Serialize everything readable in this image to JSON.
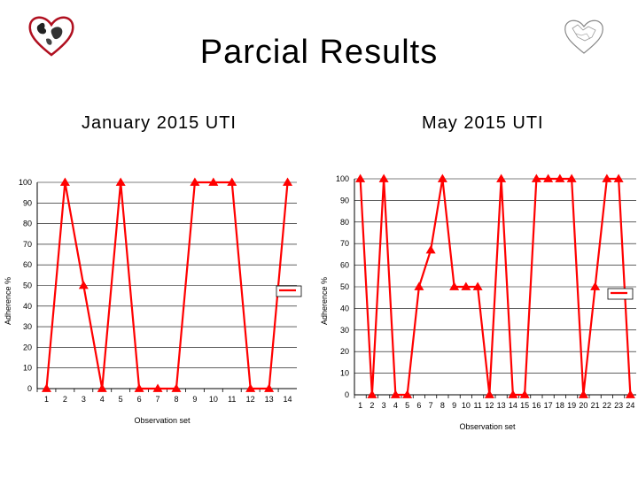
{
  "page": {
    "title": "Parcial Results",
    "icons": {
      "left_logo": "heart-globe-icon",
      "right_logo": "heart-map-icon"
    }
  },
  "colors": {
    "series": "#ff0000",
    "axis": "#000000",
    "gridline": "#000000"
  },
  "chart_data": [
    {
      "type": "line",
      "title": "January 2015 UTI",
      "xlabel": "Observation set",
      "ylabel": "Adherence %",
      "x": [
        1,
        2,
        3,
        4,
        5,
        6,
        7,
        8,
        9,
        10,
        11,
        12,
        13,
        14
      ],
      "series": [
        {
          "values": [
            0,
            100,
            50,
            0,
            100,
            0,
            0,
            0,
            100,
            100,
            100,
            0,
            0,
            100
          ]
        }
      ],
      "ylim": [
        0,
        100
      ],
      "yticks": [
        0,
        10,
        20,
        30,
        40,
        50,
        60,
        70,
        80,
        90,
        100
      ],
      "grid": true,
      "legend": "right",
      "marker": "triangle"
    },
    {
      "type": "line",
      "title": "May 2015 UTI",
      "xlabel": "Observation set",
      "ylabel": "Adherence %",
      "x": [
        1,
        2,
        3,
        4,
        5,
        6,
        7,
        8,
        9,
        10,
        11,
        12,
        13,
        14,
        15,
        16,
        17,
        18,
        19,
        20,
        21,
        22,
        23,
        24
      ],
      "series": [
        {
          "values": [
            100,
            0,
            100,
            0,
            0,
            50,
            67,
            100,
            50,
            50,
            50,
            0,
            100,
            0,
            0,
            100,
            100,
            100,
            100,
            0,
            50,
            100,
            100,
            0
          ]
        }
      ],
      "ylim": [
        0,
        100
      ],
      "yticks": [
        0,
        10,
        20,
        30,
        40,
        50,
        60,
        70,
        80,
        90,
        100
      ],
      "grid": true,
      "legend": "right",
      "marker": "triangle"
    }
  ]
}
